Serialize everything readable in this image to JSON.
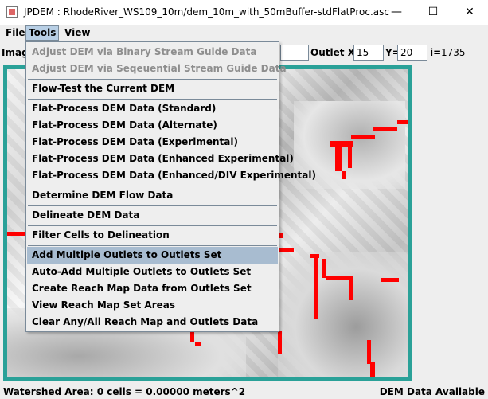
{
  "window": {
    "title": "JPDEM : RhodeRiver_WS109_10m/dem_10m_with_50mBuffer-stdFlatProc.asc",
    "minimize_glyph": "—",
    "maximize_glyph": "☐",
    "close_glyph": "✕"
  },
  "menubar": {
    "file": "File",
    "tools": "Tools",
    "view": "View"
  },
  "toolbar": {
    "image_label": "Image",
    "outlet_x_label": "Outlet X=",
    "outlet_x_value": "15",
    "y_label": "Y=",
    "y_value": "20",
    "i_label": "i=",
    "i_value": "1735"
  },
  "tools_menu": {
    "items": [
      {
        "label": "Adjust DEM via Binary Stream Guide Data",
        "enabled": false
      },
      {
        "label": "Adjust DEM via Seqeuential Stream Guide Data",
        "enabled": false
      },
      {
        "label": "Flow-Test the Current DEM",
        "enabled": true
      },
      {
        "label": "Flat-Process DEM Data (Standard)",
        "enabled": true
      },
      {
        "label": "Flat-Process DEM Data (Alternate)",
        "enabled": true
      },
      {
        "label": "Flat-Process DEM Data (Experimental)",
        "enabled": true
      },
      {
        "label": "Flat-Process DEM Data (Enhanced Experimental)",
        "enabled": true
      },
      {
        "label": "Flat-Process DEM Data (Enhanced/DIV Experimental)",
        "enabled": true
      },
      {
        "label": "Determine DEM Flow Data",
        "enabled": true
      },
      {
        "label": "Delineate DEM Data",
        "enabled": true
      },
      {
        "label": "Filter Cells to Delineation",
        "enabled": true
      },
      {
        "label": "Add Multiple Outlets to Outlets Set",
        "enabled": true,
        "highlighted": true
      },
      {
        "label": "Auto-Add Multiple Outlets to Outlets Set",
        "enabled": true
      },
      {
        "label": "Create Reach Map Data from Outlets Set",
        "enabled": true
      },
      {
        "label": "View Reach Map Set Areas",
        "enabled": true
      },
      {
        "label": "Clear Any/All Reach Map and Outlets Data",
        "enabled": true
      }
    ]
  },
  "status": {
    "left": "Watershed Area: 0 cells = 0.00000 meters^2",
    "right": "DEM Data Available"
  },
  "colors": {
    "frame": "#2aa198",
    "stream": "#ff0000",
    "highlight": "#a8bcd0"
  }
}
